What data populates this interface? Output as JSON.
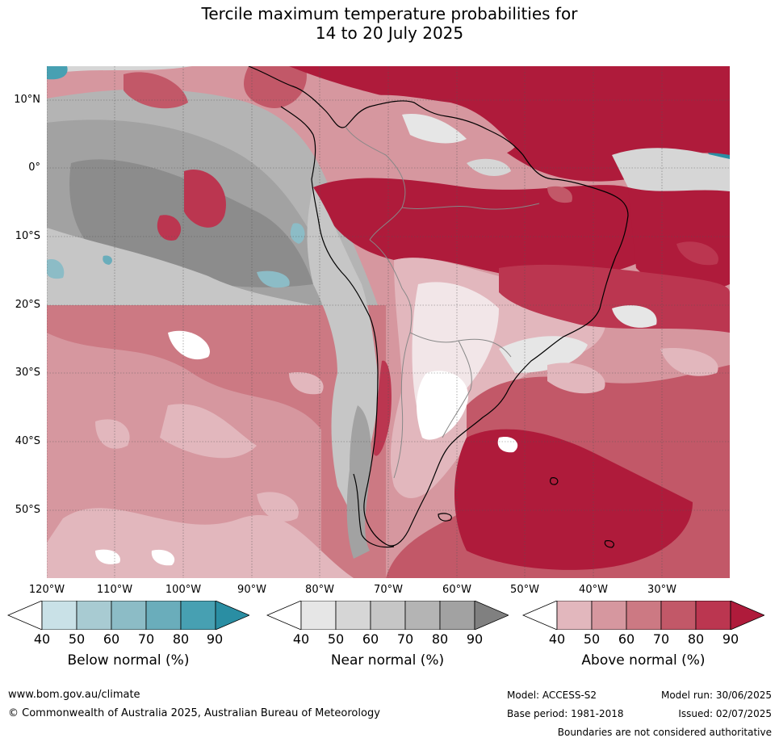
{
  "title": {
    "line1": "Tercile maximum temperature probabilities for",
    "line2": "14 to 20 July 2025"
  },
  "map": {
    "lat_labels": [
      "10°N",
      "0°",
      "10°S",
      "20°S",
      "30°S",
      "40°S",
      "50°S"
    ],
    "lon_labels": [
      "120°W",
      "110°W",
      "100°W",
      "90°W",
      "80°W",
      "70°W",
      "60°W",
      "50°W",
      "40°W",
      "30°W"
    ]
  },
  "colorbars": {
    "ticks": [
      "40",
      "50",
      "60",
      "70",
      "80",
      "90"
    ],
    "below": {
      "title": "Below normal (%)",
      "colors": [
        "#ffffff",
        "#c9e1e7",
        "#a8cbd2",
        "#8cbcc6",
        "#6aadbb",
        "#47a0b2",
        "#2a8ea3"
      ]
    },
    "near": {
      "title": "Near normal (%)",
      "colors": [
        "#ffffff",
        "#e6e6e6",
        "#d6d6d6",
        "#c6c6c6",
        "#b4b4b4",
        "#a2a2a2",
        "#808080"
      ]
    },
    "above": {
      "title": "Above normal (%)",
      "colors": [
        "#ffffff",
        "#e2b7bd",
        "#d6979f",
        "#cc7983",
        "#c25868",
        "#bb3650",
        "#af1b3b"
      ]
    }
  },
  "footer": {
    "url": "www.bom.gov.au/climate",
    "copyright": "© Commonwealth of Australia 2025, Australian Bureau of Meteorology",
    "model": "Model: ACCESS-S2",
    "model_run": "Model run: 30/06/2025",
    "base_period": "Base period: 1981-2018",
    "issued": "Issued: 02/07/2025",
    "disclaimer": "Boundaries are not considered authoritative"
  }
}
